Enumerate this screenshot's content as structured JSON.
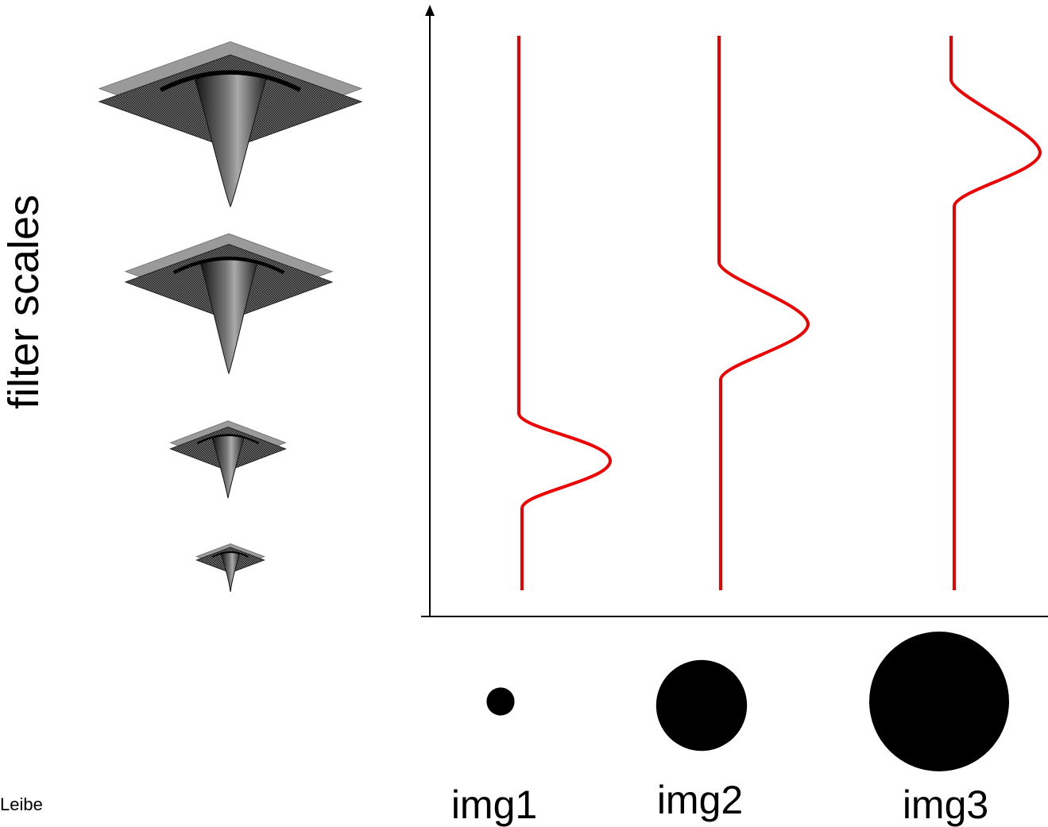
{
  "axis": {
    "ylabel": "filter scales"
  },
  "images": [
    {
      "label": "img1",
      "blob_relative_size": 0.2
    },
    {
      "label": "img2",
      "blob_relative_size": 0.65
    },
    {
      "label": "img3",
      "blob_relative_size": 1.0
    }
  ],
  "response_curve_color": "#ee0000",
  "filter_kernel_icon": "laplacian-of-gaussian-mesh-icon",
  "credit": "Leibe"
}
